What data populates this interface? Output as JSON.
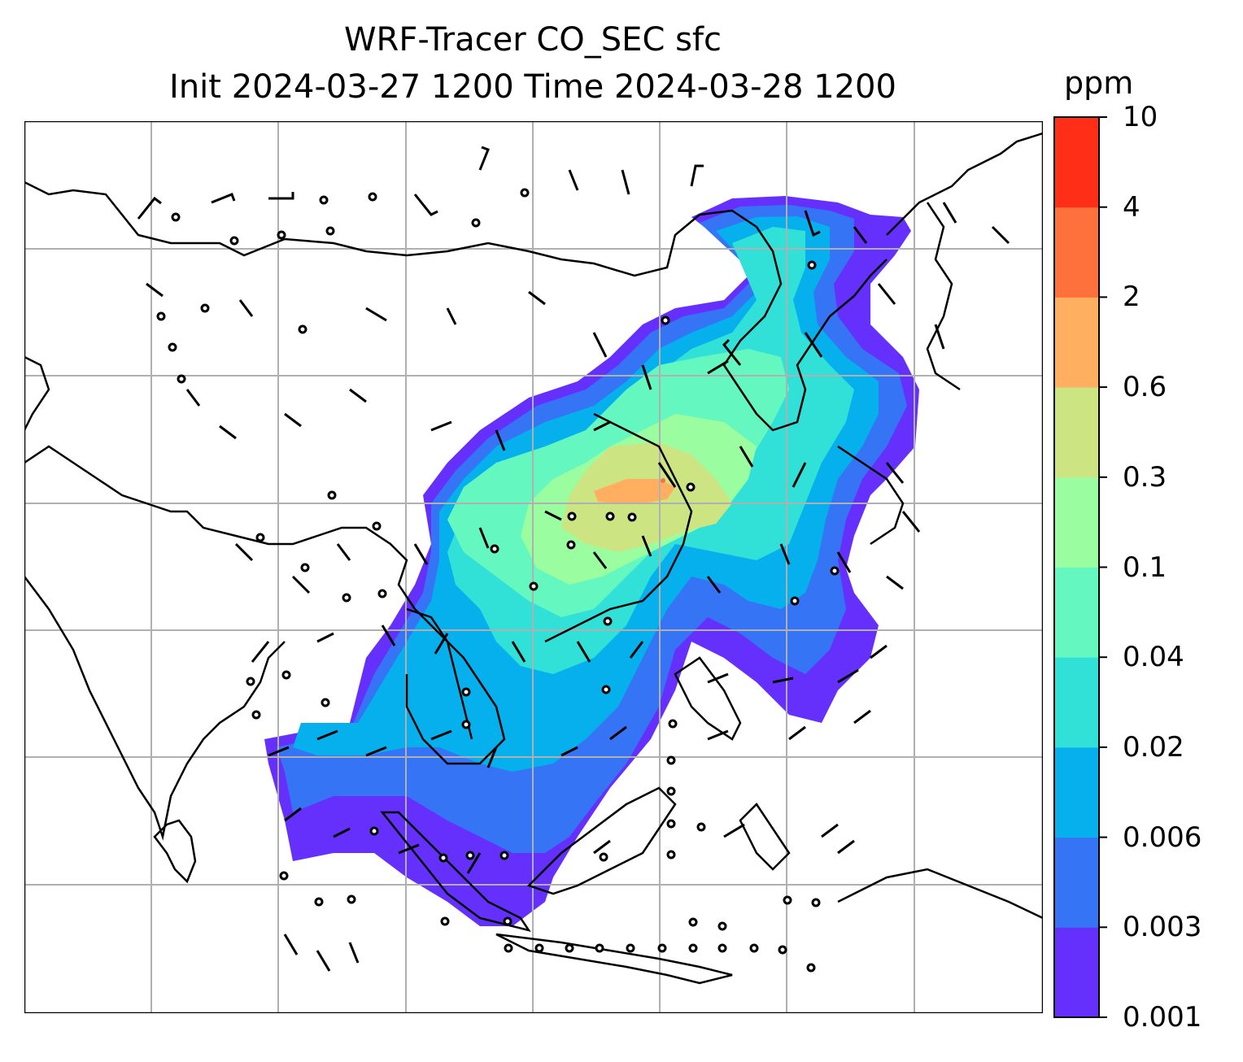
{
  "title": {
    "line1": "WRF-Tracer CO_SEC sfc",
    "line2": "Init 2024-03-27 1200 Time 2024-03-28 1200"
  },
  "colorbar": {
    "unit": "ppm",
    "levels": [
      "0.001",
      "0.003",
      "0.006",
      "0.02",
      "0.04",
      "0.1",
      "0.3",
      "0.6",
      "2",
      "4",
      "10"
    ],
    "colors": [
      "#6530fb",
      "#3575f5",
      "#05b0ec",
      "#31e0d7",
      "#64f7bf",
      "#9afd9f",
      "#cde483",
      "#ffaf5f",
      "#ff713c",
      "#ff2e17"
    ]
  },
  "map": {
    "gridline_color": "#b0b0b0",
    "coastline_color": "#000000",
    "plume_description_levels": [
      "0.001",
      "0.003",
      "0.006",
      "0.02",
      "0.04",
      "0.1",
      "0.3",
      "0.6",
      "2",
      "4",
      "10"
    ]
  }
}
